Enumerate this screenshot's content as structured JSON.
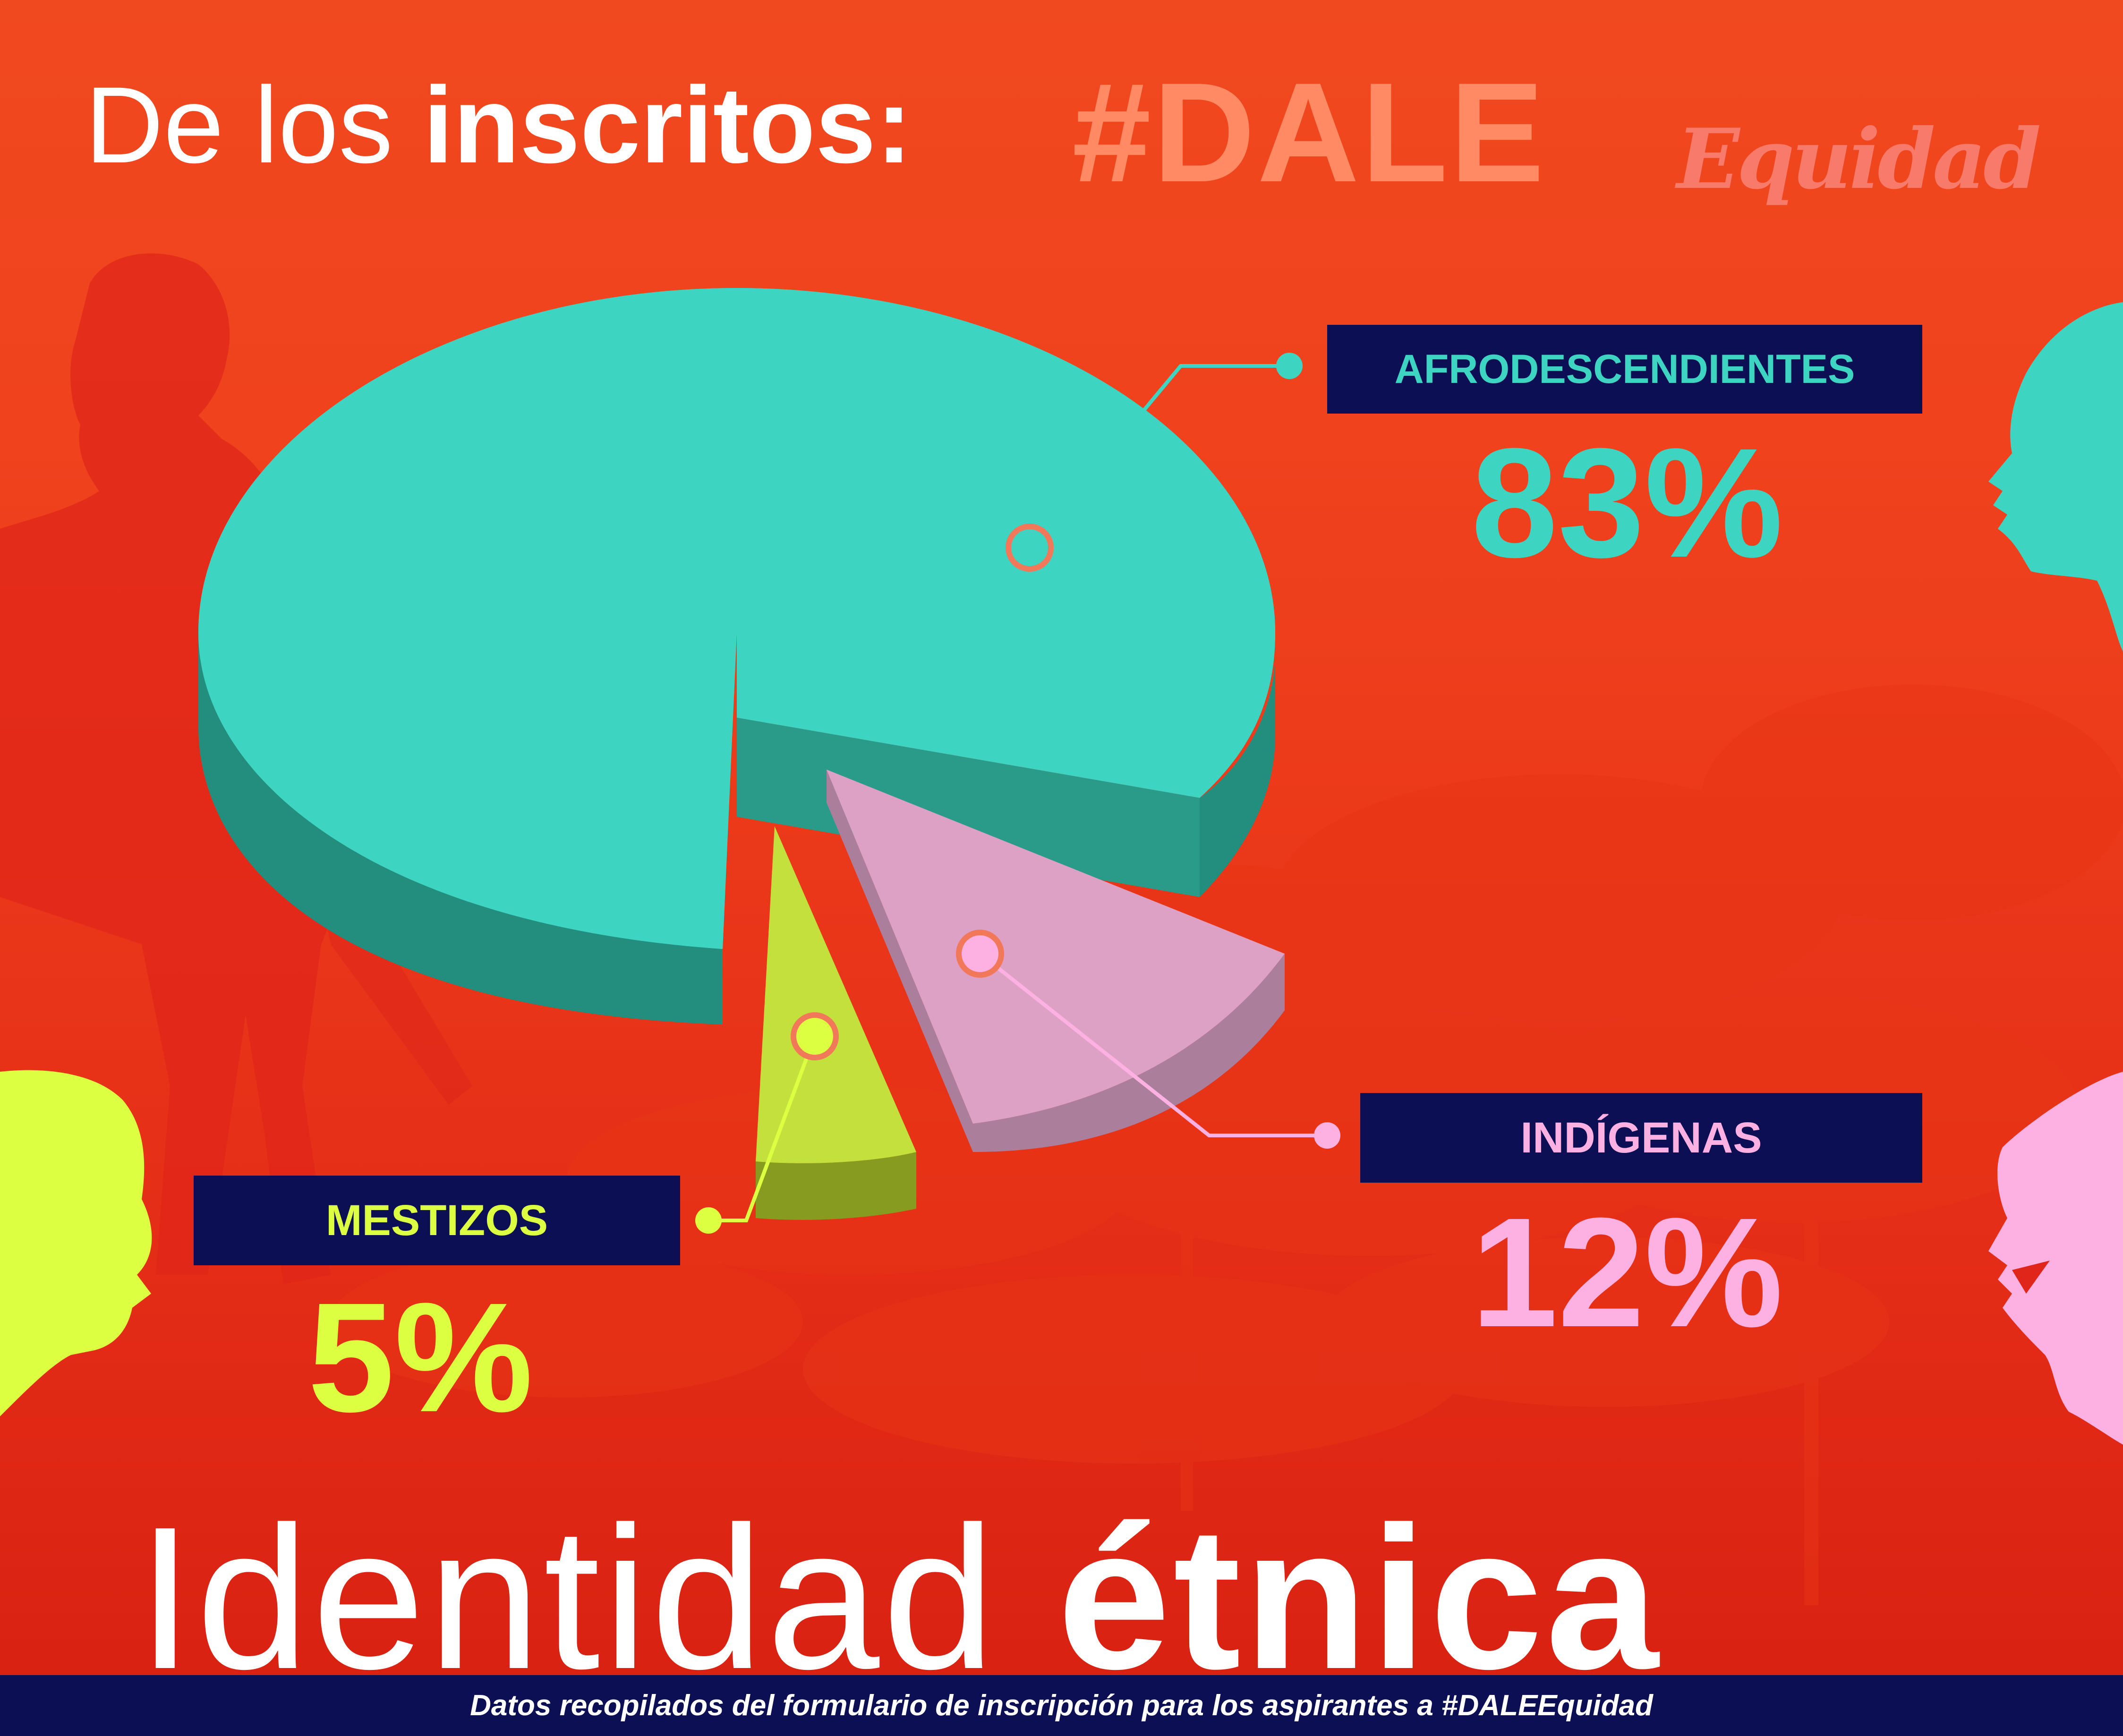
{
  "header": {
    "prefix": "De los ",
    "prefix_bold": "inscritos:",
    "hashtag_main": "#DALE",
    "hashtag_script": "Equidad"
  },
  "chart_data": {
    "type": "pie",
    "title": "Identidad étnica",
    "slices": [
      {
        "label": "AFRODESCENDIENTES",
        "value": 83,
        "display": "83%",
        "color": "#3dd4c1",
        "side_color": "#238d7e"
      },
      {
        "label": "INDÍGENAS",
        "value": 12,
        "display": "12%",
        "color": "#dea1c6",
        "side_color": "#ab7f9b"
      },
      {
        "label": "MESTIZOS",
        "value": 5,
        "display": "5%",
        "color": "#c4e03c",
        "side_color": "#869b1f"
      }
    ]
  },
  "labels": {
    "afro": {
      "name": "AFRODESCENDIENTES",
      "pct": "83%",
      "color": "#3dd4c1"
    },
    "indigenas": {
      "name": "INDÍGENAS",
      "pct": "12%",
      "color": "#fdb1e3"
    },
    "mestizos": {
      "name": "MESTIZOS",
      "pct": "5%",
      "color": "#dcff41"
    }
  },
  "title": {
    "light": "Identidad ",
    "bold": "étnica"
  },
  "footer": {
    "text": "Datos recopilados del formulario de inscripción para los aspirantes a #DALEEquidad"
  },
  "colors": {
    "label_bg": "#0d0f55",
    "hashtag": "#ff8a64"
  }
}
